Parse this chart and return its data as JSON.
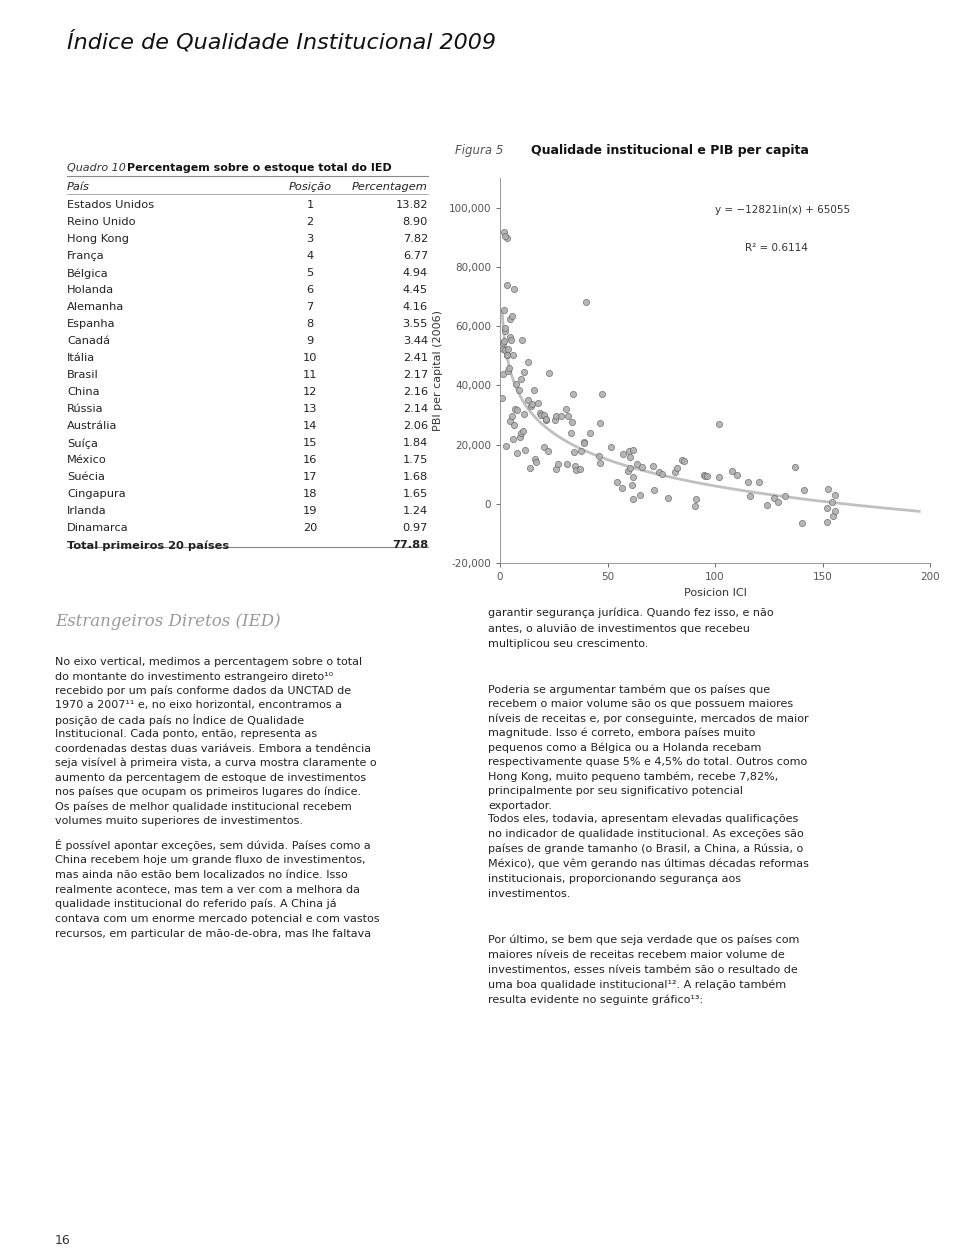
{
  "title": "Índice de Qualidade Institucional 2009",
  "title_bg": "#d4d4d4",
  "page_bg": "#ffffff",
  "table_title_normal": "Quadro 10",
  "table_title_bold": "Percentagem sobre o estoque total do IED",
  "table_bg": "#e8e8e8",
  "table_col1": "País",
  "table_col2": "Posição",
  "table_col3": "Percentagem",
  "table_data": [
    [
      "Estados Unidos",
      "1",
      "13.82"
    ],
    [
      "Reino Unido",
      "2",
      "8.90"
    ],
    [
      "Hong Kong",
      "3",
      "7.82"
    ],
    [
      "França",
      "4",
      "6.77"
    ],
    [
      "Bélgica",
      "5",
      "4.94"
    ],
    [
      "Holanda",
      "6",
      "4.45"
    ],
    [
      "Alemanha",
      "7",
      "4.16"
    ],
    [
      "Espanha",
      "8",
      "3.55"
    ],
    [
      "Canadá",
      "9",
      "3.44"
    ],
    [
      "Itália",
      "10",
      "2.41"
    ],
    [
      "Brasil",
      "11",
      "2.17"
    ],
    [
      "China",
      "12",
      "2.16"
    ],
    [
      "Rússia",
      "13",
      "2.14"
    ],
    [
      "Austrália",
      "14",
      "2.06"
    ],
    [
      "Suíça",
      "15",
      "1.84"
    ],
    [
      "México",
      "16",
      "1.75"
    ],
    [
      "Suécia",
      "17",
      "1.68"
    ],
    [
      "Cingapura",
      "18",
      "1.65"
    ],
    [
      "Irlanda",
      "19",
      "1.24"
    ],
    [
      "Dinamarca",
      "20",
      "0.97"
    ],
    [
      "Total primeiros 20 países",
      "",
      "77.88"
    ]
  ],
  "fig_label": "Figura 5",
  "fig_title": "Qualidade institucional e PIB per capita",
  "xlabel": "Posicion ICI",
  "ylabel": "PBI per capital (2006)",
  "eq_text": "y = −12821in(x) + 65055",
  "r2_text": "R² = 0.6114",
  "xlim": [
    0,
    200
  ],
  "ylim": [
    -20000,
    110000
  ],
  "yticks": [
    -20000,
    0,
    20000,
    40000,
    60000,
    80000,
    100000
  ],
  "ytick_labels": [
    "-20,000",
    "0",
    "20,000",
    "40,000",
    "60,000",
    "80,000",
    "100,000"
  ],
  "xticks": [
    0,
    50,
    100,
    150,
    200
  ],
  "section_title": "Estrangeiros Diretos (IED)",
  "left_para1": [
    "No eixo vertical, medimos a percentagem sobre o total",
    "do montante do investimento estrangeiro direto¹⁰",
    "recebido por um país conforme dados da UNCTAD de",
    "1970 a 2007¹¹ e, no eixo horizontal, encontramos a",
    "posição de cada país no Índice de Qualidade",
    "Institucional. Cada ponto, então, representa as",
    "coordenadas destas duas variáveis. Embora a tendência",
    "seja visível à primeira vista, a curva mostra claramente o",
    "aumento da percentagem de estoque de investimentos",
    "nos países que ocupam os primeiros lugares do índice.",
    "Os países de melhor qualidade institucional recebem",
    "volumes muito superiores de investimentos."
  ],
  "left_para2": [
    "É possível apontar exceções, sem dúvida. Países como a",
    "China recebem hoje um grande fluxo de investimentos,",
    "mas ainda não estão bem localizados no índice. Isso",
    "realmente acontece, mas tem a ver com a melhora da",
    "qualidade institucional do referido país. A China já",
    "contava com um enorme mercado potencial e com vastos",
    "recursos, em particular de mão-de-obra, mas lhe faltava"
  ],
  "right_para1": [
    "garantir segurança jurídica. Quando fez isso, e não",
    "antes, o aluvião de investimentos que recebeu",
    "multiplicou seu crescimento."
  ],
  "right_para2": [
    "Poderia se argumentar também que os países que",
    "recebem o maior volume são os que possuem maiores",
    "níveis de receitas e, por conseguinte, mercados de maior",
    "magnitude. Isso é correto, embora países muito",
    "pequenos como a Bélgica ou a Holanda recebam",
    "respectivamente quase 5% e 4,5% do total. Outros como",
    "Hong Kong, muito pequeno também, recebe 7,82%,",
    "principalmente por seu significativo potencial",
    "exportador."
  ],
  "right_para3": [
    "Todos eles, todavia, apresentam elevadas qualificações",
    "no indicador de qualidade institucional. As exceções são",
    "países de grande tamanho (o Brasil, a China, a Rússia, o",
    "México), que vêm gerando nas últimas décadas reformas",
    "institucionais, proporcionando segurança aos",
    "investimentos."
  ],
  "right_para4": [
    "Por último, se bem que seja verdade que os países com",
    "maiores níveis de receitas recebem maior volume de",
    "investimentos, esses níveis também são o resultado de",
    "uma boa qualidade institucional¹². A relação também",
    "resulta evidente no seguinte gráfico¹³:"
  ],
  "page_number": "16"
}
